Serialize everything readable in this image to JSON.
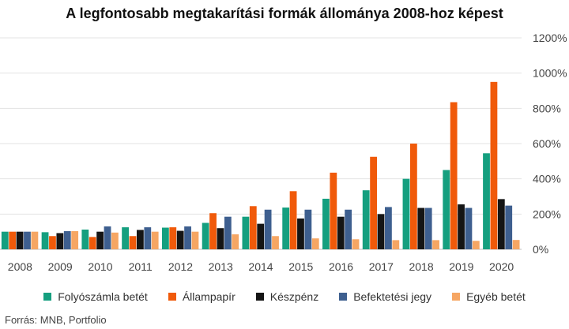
{
  "chart_data": {
    "type": "bar",
    "title": "A legfontosabb megtakarítási formák állománya 2008-hoz képest",
    "categories": [
      "2008",
      "2009",
      "2010",
      "2011",
      "2012",
      "2013",
      "2014",
      "2015",
      "2016",
      "2017",
      "2018",
      "2019",
      "2020"
    ],
    "y_ticks": [
      "0%",
      "200%",
      "400%",
      "600%",
      "800%",
      "1000%",
      "1200%"
    ],
    "ylim": [
      0,
      1200
    ],
    "y_axis_side": "right",
    "grid": true,
    "legend_position": "bottom",
    "series": [
      {
        "name": "Folyószámla betét",
        "color": "#159f7f",
        "values": [
          100,
          97,
          112,
          125,
          123,
          150,
          185,
          237,
          287,
          335,
          400,
          450,
          545
        ]
      },
      {
        "name": "Állampapír",
        "color": "#f05a0a",
        "values": [
          100,
          75,
          70,
          75,
          125,
          205,
          245,
          330,
          435,
          525,
          600,
          835,
          950
        ]
      },
      {
        "name": "Készpénz",
        "color": "#151515",
        "values": [
          100,
          92,
          100,
          110,
          105,
          120,
          145,
          175,
          185,
          200,
          235,
          255,
          285
        ]
      },
      {
        "name": "Befektetési jegy",
        "color": "#3e5f8f",
        "values": [
          100,
          103,
          130,
          125,
          130,
          185,
          225,
          225,
          225,
          240,
          235,
          235,
          248
        ]
      },
      {
        "name": "Egyéb betét",
        "color": "#f6a663",
        "values": [
          100,
          103,
          95,
          100,
          100,
          85,
          75,
          62,
          57,
          52,
          52,
          48,
          53
        ]
      }
    ]
  },
  "source": "Forrás: MNB, Portfolio"
}
